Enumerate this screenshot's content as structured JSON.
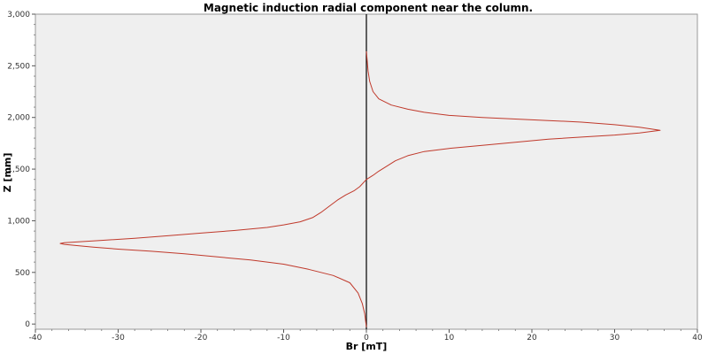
{
  "chart_data": {
    "type": "line",
    "title": "Magnetic induction radial component near the column.",
    "xlabel": "Br [mT]",
    "ylabel": "Z [mm]",
    "xlim": [
      -40,
      40
    ],
    "ylim": [
      -50,
      3000
    ],
    "x_ticks": [
      -40,
      -30,
      -20,
      -10,
      0,
      10,
      20,
      30,
      40
    ],
    "x_tick_labels": [
      "-40",
      "-30",
      "-20",
      "-10",
      "0",
      "10",
      "20",
      "30",
      "40"
    ],
    "y_ticks": [
      0,
      500,
      1000,
      1500,
      2000,
      2500,
      3000
    ],
    "y_tick_labels": [
      "0",
      "500",
      "1,000",
      "1,500",
      "2,000",
      "2,500",
      "3,000"
    ],
    "grid": false,
    "legend": "none",
    "colors": {
      "series": "#c0392b",
      "zero_line": "#000000",
      "plot_bg": "#efefef"
    },
    "series": [
      {
        "x": [
          0,
          -0.2,
          -0.5,
          -1,
          -2,
          -4,
          -7,
          -10,
          -14,
          -18,
          -22,
          -26,
          -30,
          -33,
          -35,
          -36.5,
          -37,
          -36.5,
          -35,
          -32,
          -28,
          -24,
          -20,
          -16,
          -12,
          -10,
          -8,
          -6.5,
          -5.5,
          -4.5,
          -3.5,
          -2.5,
          -1.5,
          -0.8,
          0,
          0.8,
          1.5,
          2.5,
          3.5,
          5,
          7,
          10,
          14,
          18,
          22,
          26,
          30,
          33,
          35.5,
          33,
          30,
          26,
          22,
          18,
          14,
          10,
          7,
          5,
          3,
          1.5,
          0.8,
          0.4,
          0.2,
          0
        ],
        "y": [
          -30,
          100,
          200,
          300,
          400,
          470,
          530,
          580,
          620,
          650,
          680,
          705,
          725,
          745,
          760,
          772,
          780,
          788,
          795,
          810,
          830,
          855,
          880,
          905,
          935,
          960,
          990,
          1030,
          1080,
          1140,
          1200,
          1250,
          1290,
          1330,
          1400,
          1440,
          1480,
          1530,
          1580,
          1630,
          1670,
          1700,
          1730,
          1760,
          1790,
          1810,
          1830,
          1850,
          1875,
          1905,
          1930,
          1955,
          1970,
          1985,
          2000,
          2020,
          2050,
          2080,
          2120,
          2180,
          2250,
          2350,
          2450,
          2640
        ]
      }
    ]
  }
}
